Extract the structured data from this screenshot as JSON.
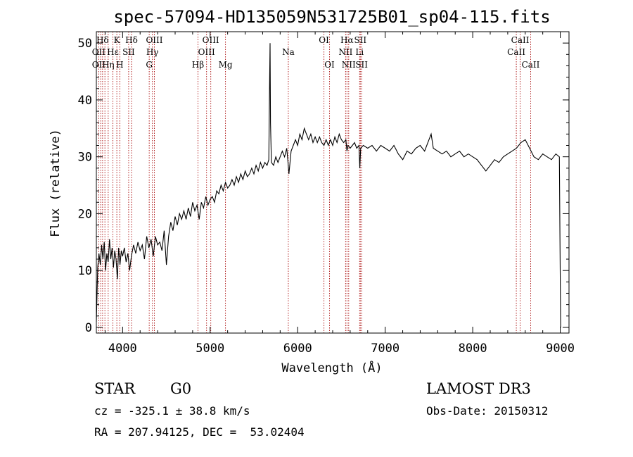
{
  "chart_data": {
    "type": "line",
    "title": "spec-57094-HD135059N531725B01_sp04-115.fits",
    "xlabel": "Wavelength (Å)",
    "ylabel": "Flux (relative)",
    "xlim": [
      3700,
      9100
    ],
    "ylim": [
      -1,
      52
    ],
    "x_ticks": [
      4000,
      5000,
      6000,
      7000,
      8000,
      9000
    ],
    "y_ticks": [
      0,
      10,
      20,
      30,
      40,
      50
    ],
    "grid": false,
    "series": [
      {
        "color": "#000000",
        "points": [
          [
            3700,
            1
          ],
          [
            3715,
            10.5
          ],
          [
            3730,
            13
          ],
          [
            3745,
            11
          ],
          [
            3760,
            14.5
          ],
          [
            3775,
            12
          ],
          [
            3790,
            15
          ],
          [
            3805,
            10
          ],
          [
            3820,
            13
          ],
          [
            3835,
            11.5
          ],
          [
            3850,
            15.5
          ],
          [
            3865,
            12
          ],
          [
            3880,
            14
          ],
          [
            3895,
            10.5
          ],
          [
            3910,
            13.5
          ],
          [
            3925,
            12
          ],
          [
            3940,
            8.5
          ],
          [
            3955,
            14
          ],
          [
            3970,
            11
          ],
          [
            3985,
            13.5
          ],
          [
            4000,
            12.5
          ],
          [
            4020,
            14
          ],
          [
            4040,
            11.5
          ],
          [
            4060,
            13
          ],
          [
            4080,
            10
          ],
          [
            4100,
            12.5
          ],
          [
            4125,
            14.5
          ],
          [
            4150,
            13
          ],
          [
            4175,
            15
          ],
          [
            4200,
            13.5
          ],
          [
            4225,
            14.5
          ],
          [
            4250,
            12
          ],
          [
            4275,
            16
          ],
          [
            4300,
            14
          ],
          [
            4325,
            15.5
          ],
          [
            4350,
            12.5
          ],
          [
            4375,
            16
          ],
          [
            4400,
            14.5
          ],
          [
            4425,
            15
          ],
          [
            4450,
            13.5
          ],
          [
            4475,
            17
          ],
          [
            4500,
            11
          ],
          [
            4525,
            16
          ],
          [
            4550,
            18.5
          ],
          [
            4575,
            17
          ],
          [
            4600,
            19.5
          ],
          [
            4625,
            18
          ],
          [
            4650,
            20
          ],
          [
            4675,
            19
          ],
          [
            4700,
            20.5
          ],
          [
            4725,
            19
          ],
          [
            4750,
            21
          ],
          [
            4775,
            19.5
          ],
          [
            4800,
            22
          ],
          [
            4825,
            20.5
          ],
          [
            4850,
            21.5
          ],
          [
            4875,
            19
          ],
          [
            4900,
            22
          ],
          [
            4925,
            21
          ],
          [
            4950,
            23
          ],
          [
            4975,
            21.5
          ],
          [
            5000,
            22.5
          ],
          [
            5025,
            23
          ],
          [
            5050,
            22
          ],
          [
            5075,
            24
          ],
          [
            5100,
            23.5
          ],
          [
            5125,
            25
          ],
          [
            5150,
            24
          ],
          [
            5175,
            25.5
          ],
          [
            5200,
            24.5
          ],
          [
            5225,
            25
          ],
          [
            5250,
            26
          ],
          [
            5275,
            25
          ],
          [
            5300,
            26.5
          ],
          [
            5325,
            25.5
          ],
          [
            5350,
            27
          ],
          [
            5375,
            26
          ],
          [
            5400,
            27.5
          ],
          [
            5425,
            26.5
          ],
          [
            5450,
            27
          ],
          [
            5475,
            28
          ],
          [
            5500,
            27
          ],
          [
            5525,
            28.5
          ],
          [
            5550,
            27.5
          ],
          [
            5575,
            29
          ],
          [
            5600,
            28
          ],
          [
            5625,
            29
          ],
          [
            5650,
            28.5
          ],
          [
            5670,
            29.5
          ],
          [
            5680,
            44
          ],
          [
            5685,
            50
          ],
          [
            5690,
            36
          ],
          [
            5700,
            29
          ],
          [
            5725,
            28.5
          ],
          [
            5750,
            30
          ],
          [
            5775,
            29
          ],
          [
            5800,
            30
          ],
          [
            5825,
            31
          ],
          [
            5850,
            30
          ],
          [
            5875,
            31.5
          ],
          [
            5890,
            29
          ],
          [
            5900,
            27
          ],
          [
            5925,
            31
          ],
          [
            5950,
            32
          ],
          [
            5975,
            33
          ],
          [
            6000,
            32
          ],
          [
            6025,
            34
          ],
          [
            6050,
            33
          ],
          [
            6075,
            35
          ],
          [
            6100,
            34
          ],
          [
            6125,
            33
          ],
          [
            6150,
            34
          ],
          [
            6175,
            32.5
          ],
          [
            6200,
            33.5
          ],
          [
            6225,
            32.5
          ],
          [
            6250,
            33.5
          ],
          [
            6275,
            32.5
          ],
          [
            6300,
            32
          ],
          [
            6325,
            33
          ],
          [
            6350,
            32
          ],
          [
            6375,
            33
          ],
          [
            6400,
            32
          ],
          [
            6425,
            33.5
          ],
          [
            6450,
            32.5
          ],
          [
            6475,
            34
          ],
          [
            6500,
            33
          ],
          [
            6525,
            32.5
          ],
          [
            6550,
            33
          ],
          [
            6563,
            31
          ],
          [
            6575,
            32
          ],
          [
            6600,
            31.5
          ],
          [
            6625,
            32
          ],
          [
            6650,
            32.5
          ],
          [
            6675,
            31.5
          ],
          [
            6700,
            32
          ],
          [
            6710,
            28
          ],
          [
            6720,
            31.5
          ],
          [
            6750,
            32
          ],
          [
            6800,
            31.5
          ],
          [
            6850,
            32
          ],
          [
            6900,
            31
          ],
          [
            6950,
            32
          ],
          [
            7000,
            31.5
          ],
          [
            7050,
            31
          ],
          [
            7100,
            32
          ],
          [
            7150,
            30.5
          ],
          [
            7200,
            29.5
          ],
          [
            7250,
            31
          ],
          [
            7300,
            30.5
          ],
          [
            7350,
            31.5
          ],
          [
            7400,
            32
          ],
          [
            7450,
            31
          ],
          [
            7500,
            33
          ],
          [
            7525,
            34
          ],
          [
            7550,
            31.5
          ],
          [
            7600,
            31
          ],
          [
            7650,
            30.5
          ],
          [
            7700,
            31
          ],
          [
            7750,
            30
          ],
          [
            7800,
            30.5
          ],
          [
            7850,
            31
          ],
          [
            7900,
            30
          ],
          [
            7950,
            30.5
          ],
          [
            8000,
            30
          ],
          [
            8050,
            29.5
          ],
          [
            8100,
            28.5
          ],
          [
            8150,
            27.5
          ],
          [
            8200,
            28.5
          ],
          [
            8250,
            29.5
          ],
          [
            8300,
            29
          ],
          [
            8350,
            30
          ],
          [
            8400,
            30.5
          ],
          [
            8450,
            31
          ],
          [
            8500,
            31.5
          ],
          [
            8550,
            32.5
          ],
          [
            8600,
            33
          ],
          [
            8650,
            31.5
          ],
          [
            8700,
            30
          ],
          [
            8750,
            29.5
          ],
          [
            8800,
            30.5
          ],
          [
            8850,
            30
          ],
          [
            8900,
            29.5
          ],
          [
            8950,
            30.5
          ],
          [
            8990,
            30
          ],
          [
            9000,
            8
          ],
          [
            9005,
            0
          ]
        ]
      }
    ],
    "spectral_lines": [
      {
        "label": "Hδ",
        "wl": 3771,
        "row": 0
      },
      {
        "label": "OII",
        "wl": 3727,
        "row": 1
      },
      {
        "label": "OII",
        "wl": 3727,
        "row": 2
      },
      {
        "label": "Hη",
        "wl": 3835,
        "row": 2
      },
      {
        "label": "Hε",
        "wl": 3889,
        "row": 1
      },
      {
        "label": "K",
        "wl": 3934,
        "row": 0
      },
      {
        "label": "SII",
        "wl": 4069,
        "row": 1
      },
      {
        "label": "H",
        "wl": 3968,
        "row": 2
      },
      {
        "label": "Hδ",
        "wl": 4102,
        "row": 0
      },
      {
        "label": "OIII",
        "wl": 4363,
        "row": 0
      },
      {
        "label": "Hγ",
        "wl": 4340,
        "row": 1
      },
      {
        "label": "G",
        "wl": 4304,
        "row": 2
      },
      {
        "label": "Hβ",
        "wl": 4861,
        "row": 2
      },
      {
        "label": "OIII",
        "wl": 5007,
        "row": 0
      },
      {
        "label": "OIII",
        "wl": 4959,
        "row": 1
      },
      {
        "label": "Mg",
        "wl": 5175,
        "row": 2
      },
      {
        "label": "Na",
        "wl": 5893,
        "row": 1
      },
      {
        "label": "OI",
        "wl": 6300,
        "row": 0
      },
      {
        "label": "OI",
        "wl": 6364,
        "row": 2
      },
      {
        "label": "Hα",
        "wl": 6563,
        "row": 0
      },
      {
        "label": "NII",
        "wl": 6548,
        "row": 1
      },
      {
        "label": "NII",
        "wl": 6583,
        "row": 2
      },
      {
        "label": "SII",
        "wl": 6716,
        "row": 0
      },
      {
        "label": "Li",
        "wl": 6708,
        "row": 1
      },
      {
        "label": "SII",
        "wl": 6731,
        "row": 2
      },
      {
        "label": "CaII",
        "wl": 8542,
        "row": 0
      },
      {
        "label": "CaII",
        "wl": 8498,
        "row": 1
      },
      {
        "label": "CaII",
        "wl": 8662,
        "row": 2
      }
    ],
    "line_marker_wavelengths": [
      3727,
      3750,
      3771,
      3798,
      3835,
      3889,
      3934,
      3968,
      4069,
      4102,
      4304,
      4340,
      4363,
      4861,
      4959,
      5007,
      5175,
      5893,
      6300,
      6364,
      6548,
      6563,
      6583,
      6708,
      6716,
      6731,
      8498,
      8542,
      8662
    ],
    "line_marker_color": "#b22222"
  },
  "info": {
    "object_class": "STAR",
    "subclass": "G0",
    "survey": "LAMOST DR3",
    "redshift_line": "cz = -325.1 ± 38.8 km/s",
    "obs_date_line": "Obs-Date: 20150312",
    "coords_line": "RA = 207.94125, DEC =  53.02404"
  }
}
